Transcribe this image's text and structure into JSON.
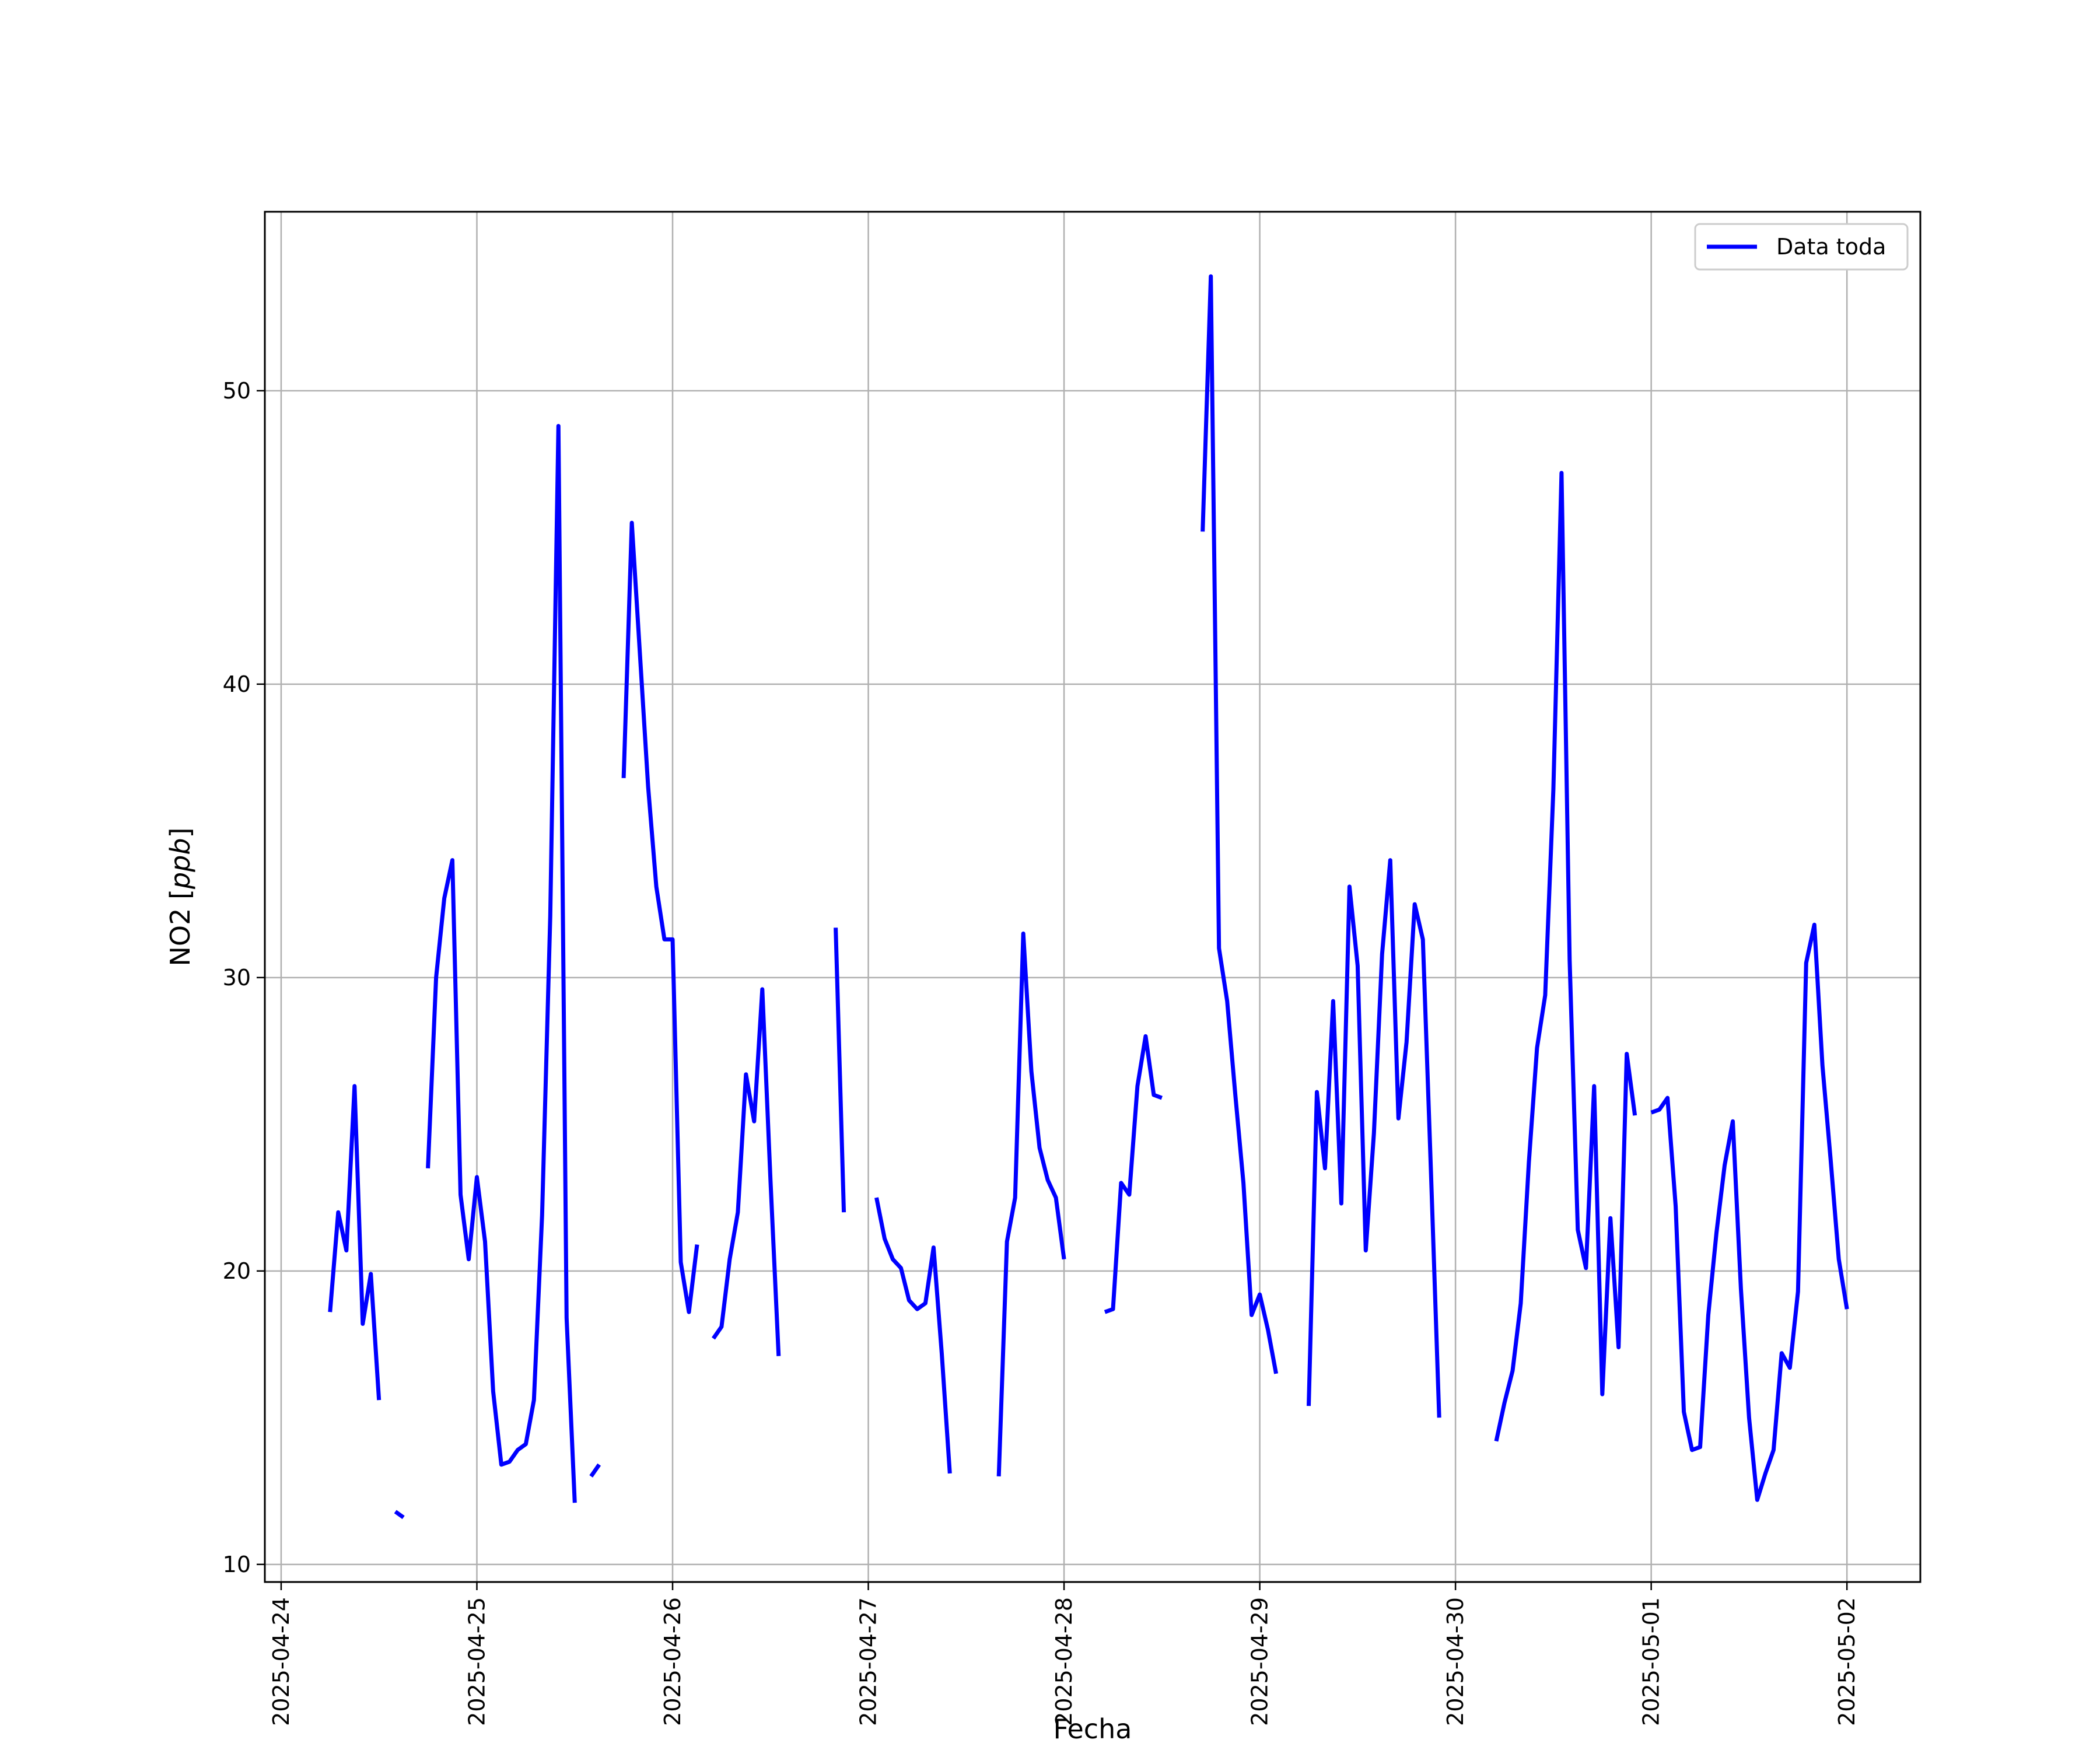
{
  "chart_data": {
    "type": "line",
    "title": "",
    "xlabel": "Fecha",
    "ylabel_main": "NO2 [",
    "ylabel_unit": "ppb",
    "ylabel_close": "]",
    "xlim": [
      "2025-04-23 22:00",
      "2025-05-02 09:00"
    ],
    "ylim": [
      9.4,
      56.1
    ],
    "grid": true,
    "legend_position": "top-right",
    "x_ticks": [
      {
        "date": "2025-04-24",
        "label": "2025-04-24"
      },
      {
        "date": "2025-04-25",
        "label": "2025-04-25"
      },
      {
        "date": "2025-04-26",
        "label": "2025-04-26"
      },
      {
        "date": "2025-04-27",
        "label": "2025-04-27"
      },
      {
        "date": "2025-04-28",
        "label": "2025-04-28"
      },
      {
        "date": "2025-04-29",
        "label": "2025-04-29"
      },
      {
        "date": "2025-04-30",
        "label": "2025-04-30"
      },
      {
        "date": "2025-05-01",
        "label": "2025-05-01"
      },
      {
        "date": "2025-05-02",
        "label": "2025-05-02"
      }
    ],
    "y_ticks": [
      {
        "value": 10,
        "label": "10"
      },
      {
        "value": 20,
        "label": "20"
      },
      {
        "value": 30,
        "label": "30"
      },
      {
        "value": 40,
        "label": "40"
      },
      {
        "value": 50,
        "label": "50"
      }
    ],
    "series": [
      {
        "name": "Data toda",
        "color": "#0000ff",
        "segments": [
          [
            [
              "2025-04-24 06:00",
              18.6
            ],
            [
              "2025-04-24 07:00",
              22.0
            ],
            [
              "2025-04-24 08:00",
              20.7
            ],
            [
              "2025-04-24 09:00",
              26.3
            ],
            [
              "2025-04-24 10:00",
              18.2
            ],
            [
              "2025-04-24 11:00",
              19.9
            ],
            [
              "2025-04-24 12:00",
              15.6
            ]
          ],
          [
            [
              "2025-04-24 14:00",
              11.8
            ],
            [
              "2025-04-24 15:00",
              11.6
            ]
          ],
          [
            [
              "2025-04-24 18:00",
              23.5
            ],
            [
              "2025-04-24 19:00",
              30.0
            ],
            [
              "2025-04-24 20:00",
              32.7
            ],
            [
              "2025-04-24 21:00",
              34.0
            ],
            [
              "2025-04-24 22:00",
              22.6
            ],
            [
              "2025-04-24 23:00",
              20.4
            ],
            [
              "2025-04-25 00:00",
              23.2
            ],
            [
              "2025-04-25 01:00",
              21.0
            ],
            [
              "2025-04-25 02:00",
              15.9
            ],
            [
              "2025-04-25 03:00",
              13.4
            ],
            [
              "2025-04-25 04:00",
              13.5
            ],
            [
              "2025-04-25 05:00",
              13.9
            ],
            [
              "2025-04-25 06:00",
              14.1
            ],
            [
              "2025-04-25 07:00",
              15.6
            ],
            [
              "2025-04-25 08:00",
              21.9
            ],
            [
              "2025-04-25 09:00",
              32.1
            ],
            [
              "2025-04-25 10:00",
              48.8
            ],
            [
              "2025-04-25 11:00",
              18.4
            ],
            [
              "2025-04-25 12:00",
              12.1
            ]
          ],
          [
            [
              "2025-04-25 14:00",
              13.0
            ],
            [
              "2025-04-25 15:00",
              13.4
            ]
          ],
          [
            [
              "2025-04-25 18:00",
              36.8
            ],
            [
              "2025-04-25 19:00",
              45.5
            ],
            [
              "2025-04-25 20:00",
              41.0
            ],
            [
              "2025-04-25 21:00",
              36.5
            ],
            [
              "2025-04-25 22:00",
              33.1
            ],
            [
              "2025-04-25 23:00",
              31.3
            ],
            [
              "2025-04-26 00:00",
              31.3
            ],
            [
              "2025-04-26 01:00",
              20.3
            ],
            [
              "2025-04-26 02:00",
              18.6
            ],
            [
              "2025-04-26 03:00",
              20.9
            ]
          ],
          [
            [
              "2025-04-26 05:00",
              17.7
            ],
            [
              "2025-04-26 06:00",
              18.1
            ],
            [
              "2025-04-26 07:00",
              20.4
            ],
            [
              "2025-04-26 08:00",
              22.0
            ],
            [
              "2025-04-26 09:00",
              26.7
            ],
            [
              "2025-04-26 10:00",
              25.1
            ],
            [
              "2025-04-26 11:00",
              29.6
            ],
            [
              "2025-04-26 12:00",
              23.1
            ],
            [
              "2025-04-26 13:00",
              17.1
            ]
          ],
          [
            [
              "2025-04-26 20:00",
              31.7
            ],
            [
              "2025-04-26 21:00",
              22.0
            ]
          ],
          [
            [
              "2025-04-27 01:00",
              22.5
            ],
            [
              "2025-04-27 02:00",
              21.1
            ],
            [
              "2025-04-27 03:00",
              20.4
            ],
            [
              "2025-04-27 04:00",
              20.1
            ],
            [
              "2025-04-27 05:00",
              19.0
            ],
            [
              "2025-04-27 06:00",
              18.7
            ],
            [
              "2025-04-27 07:00",
              18.9
            ],
            [
              "2025-04-27 08:00",
              20.8
            ],
            [
              "2025-04-27 09:00",
              17.2
            ],
            [
              "2025-04-27 10:00",
              13.1
            ]
          ],
          [
            [
              "2025-04-27 16:00",
              13.0
            ],
            [
              "2025-04-27 17:00",
              21.0
            ],
            [
              "2025-04-27 18:00",
              22.5
            ],
            [
              "2025-04-27 19:00",
              31.5
            ],
            [
              "2025-04-27 20:00",
              26.8
            ],
            [
              "2025-04-27 21:00",
              24.2
            ],
            [
              "2025-04-27 22:00",
              23.1
            ],
            [
              "2025-04-27 23:00",
              22.5
            ],
            [
              "2025-04-28 00:00",
              20.4
            ]
          ],
          [
            [
              "2025-04-28 05:00",
              18.6
            ],
            [
              "2025-04-28 06:00",
              18.7
            ],
            [
              "2025-04-28 07:00",
              23.0
            ],
            [
              "2025-04-28 08:00",
              22.6
            ],
            [
              "2025-04-28 09:00",
              26.3
            ],
            [
              "2025-04-28 10:00",
              28.0
            ],
            [
              "2025-04-28 11:00",
              26.0
            ],
            [
              "2025-04-28 12:00",
              25.9
            ]
          ],
          [
            [
              "2025-04-28 17:00",
              45.2
            ],
            [
              "2025-04-28 18:00",
              53.9
            ],
            [
              "2025-04-28 19:00",
              31.0
            ],
            [
              "2025-04-28 20:00",
              29.2
            ],
            [
              "2025-04-28 21:00",
              26.0
            ],
            [
              "2025-04-28 22:00",
              23.0
            ],
            [
              "2025-04-28 23:00",
              18.5
            ],
            [
              "2025-04-29 00:00",
              19.2
            ],
            [
              "2025-04-29 01:00",
              18.0
            ],
            [
              "2025-04-29 02:00",
              16.5
            ]
          ],
          [
            [
              "2025-04-29 06:00",
              15.4
            ],
            [
              "2025-04-29 07:00",
              26.1
            ],
            [
              "2025-04-29 08:00",
              23.5
            ],
            [
              "2025-04-29 09:00",
              29.2
            ],
            [
              "2025-04-29 10:00",
              22.3
            ],
            [
              "2025-04-29 11:00",
              33.1
            ],
            [
              "2025-04-29 12:00",
              30.4
            ],
            [
              "2025-04-29 13:00",
              20.7
            ],
            [
              "2025-04-29 14:00",
              24.7
            ],
            [
              "2025-04-29 15:00",
              30.8
            ],
            [
              "2025-04-29 16:00",
              34.0
            ],
            [
              "2025-04-29 17:00",
              25.2
            ],
            [
              "2025-04-29 18:00",
              27.8
            ],
            [
              "2025-04-29 19:00",
              32.5
            ],
            [
              "2025-04-29 20:00",
              31.3
            ],
            [
              "2025-04-29 21:00",
              23.3
            ],
            [
              "2025-04-29 22:00",
              15.0
            ]
          ],
          [
            [
              "2025-04-30 05:00",
              14.2
            ],
            [
              "2025-04-30 06:00",
              15.5
            ],
            [
              "2025-04-30 07:00",
              16.6
            ],
            [
              "2025-04-30 08:00",
              18.9
            ],
            [
              "2025-04-30 09:00",
              23.7
            ],
            [
              "2025-04-30 10:00",
              27.6
            ],
            [
              "2025-04-30 11:00",
              29.4
            ],
            [
              "2025-04-30 12:00",
              36.4
            ],
            [
              "2025-04-30 13:00",
              47.2
            ],
            [
              "2025-04-30 14:00",
              30.6
            ],
            [
              "2025-04-30 15:00",
              21.4
            ],
            [
              "2025-04-30 16:00",
              20.1
            ],
            [
              "2025-04-30 17:00",
              26.3
            ],
            [
              "2025-04-30 18:00",
              15.8
            ],
            [
              "2025-04-30 19:00",
              21.8
            ],
            [
              "2025-04-30 20:00",
              17.4
            ],
            [
              "2025-04-30 21:00",
              27.4
            ],
            [
              "2025-04-30 22:00",
              25.3
            ]
          ],
          [
            [
              "2025-05-01 00:00",
              25.4
            ],
            [
              "2025-05-01 01:00",
              25.5
            ],
            [
              "2025-05-01 02:00",
              25.9
            ],
            [
              "2025-05-01 03:00",
              22.2
            ],
            [
              "2025-05-01 04:00",
              15.2
            ],
            [
              "2025-05-01 05:00",
              13.9
            ],
            [
              "2025-05-01 06:00",
              14.0
            ],
            [
              "2025-05-01 07:00",
              18.5
            ],
            [
              "2025-05-01 08:00",
              21.3
            ],
            [
              "2025-05-01 09:00",
              23.6
            ],
            [
              "2025-05-01 10:00",
              25.1
            ],
            [
              "2025-05-01 11:00",
              19.4
            ],
            [
              "2025-05-01 12:00",
              15.0
            ],
            [
              "2025-05-01 13:00",
              12.2
            ],
            [
              "2025-05-01 14:00",
              13.1
            ],
            [
              "2025-05-01 15:00",
              13.9
            ],
            [
              "2025-05-01 16:00",
              17.2
            ],
            [
              "2025-05-01 17:00",
              16.7
            ],
            [
              "2025-05-01 18:00",
              19.3
            ],
            [
              "2025-05-01 19:00",
              30.5
            ],
            [
              "2025-05-01 20:00",
              31.8
            ],
            [
              "2025-05-01 21:00",
              27.0
            ],
            [
              "2025-05-01 22:00",
              23.8
            ],
            [
              "2025-05-01 23:00",
              20.4
            ],
            [
              "2025-05-02 00:00",
              18.7
            ]
          ]
        ]
      }
    ],
    "legend": {
      "label": "Data toda"
    }
  }
}
